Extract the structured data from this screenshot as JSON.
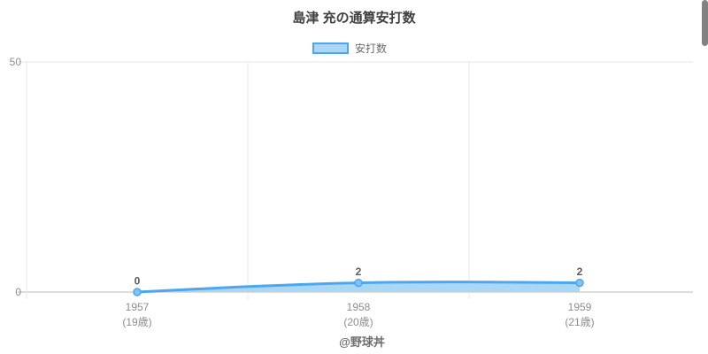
{
  "page": {
    "title": "島津 充の通算安打数",
    "footer": "@野球丼"
  },
  "legend": {
    "label": "安打数"
  },
  "chart_data": {
    "type": "area",
    "title": "島津 充の通算安打数",
    "categories": [
      "1957",
      "1958",
      "1959"
    ],
    "category_sublabels": [
      "(19歳)",
      "(20歳)",
      "(21歳)"
    ],
    "series": [
      {
        "name": "安打数",
        "values": [
          0,
          2,
          2
        ]
      }
    ],
    "data_labels": [
      "0",
      "2",
      "2"
    ],
    "xlabel": "",
    "ylabel": "",
    "ylim": [
      0,
      50
    ],
    "yticks": [
      0,
      50
    ],
    "grid": true,
    "legend_position": "top",
    "colors": {
      "line": "#4da7ee",
      "fill": "#abd7f7",
      "point_fill": "#7fc2f4",
      "grid": "#e7e7e7",
      "axis": "#d2d2d2",
      "tick_text": "#8d8d8d",
      "data_label_text": "#595959"
    }
  }
}
